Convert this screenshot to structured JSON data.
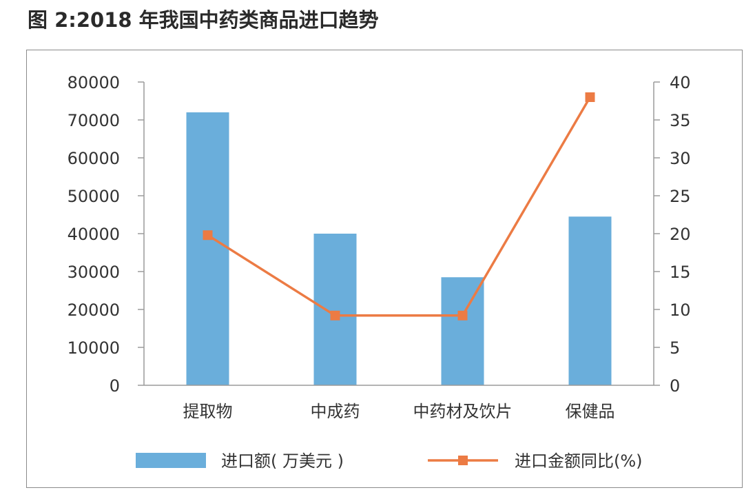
{
  "title": "图 2:2018 年我国中药类商品进口趋势",
  "colors": {
    "bar": "#6aaedb",
    "line": "#ec7b44",
    "axis": "#9a9a9a",
    "text": "#333333"
  },
  "chart_data": {
    "type": "bar",
    "categories": [
      "提取物",
      "中成药",
      "中药材及饮片",
      "保健品"
    ],
    "series": [
      {
        "name": "进口额( 万美元 )",
        "type": "bar",
        "axis": "left",
        "values": [
          72000,
          40000,
          28500,
          44500
        ]
      },
      {
        "name": "进口金额同比(%)",
        "type": "line",
        "axis": "right",
        "values": [
          19.8,
          9.2,
          9.2,
          38
        ]
      }
    ],
    "y_left": {
      "ylim": [
        0,
        80000
      ],
      "ticks": [
        "0",
        "10000",
        "20000",
        "30000",
        "40000",
        "50000",
        "60000",
        "70000",
        "80000"
      ]
    },
    "y_right": {
      "ylim": [
        0,
        40
      ],
      "ticks": [
        "0",
        "5",
        "10",
        "15",
        "20",
        "25",
        "30",
        "35",
        "40"
      ]
    },
    "grid": false,
    "legend_position": "bottom"
  }
}
